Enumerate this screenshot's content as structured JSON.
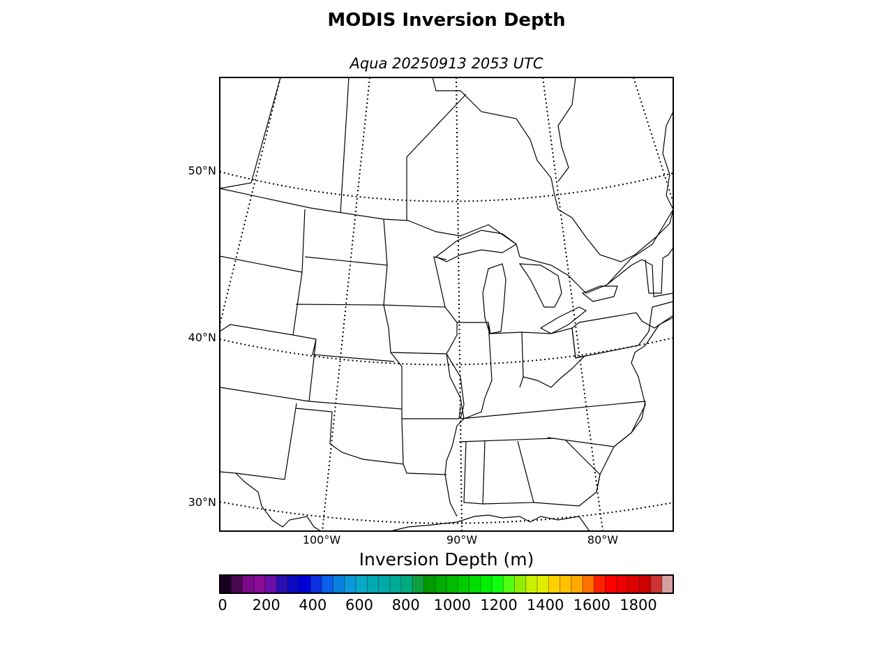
{
  "title": "MODIS Inversion Depth",
  "subtitle": "Aqua 20250913 2053 UTC",
  "map": {
    "lat_labels": [
      {
        "value": 50,
        "text": "50°N"
      },
      {
        "value": 40,
        "text": "40°N"
      },
      {
        "value": 30,
        "text": "30°N"
      }
    ],
    "lon_labels": [
      {
        "value": -100,
        "text": "100°W"
      },
      {
        "value": -90,
        "text": "90°W"
      },
      {
        "value": -80,
        "text": "80°W"
      }
    ]
  },
  "colorbar": {
    "title": "Inversion Depth (m)",
    "min": 0,
    "max": 1950,
    "step": 50,
    "ticks": [
      {
        "value": 0,
        "text": "0"
      },
      {
        "value": 200,
        "text": "200"
      },
      {
        "value": 400,
        "text": "400"
      },
      {
        "value": 600,
        "text": "600"
      },
      {
        "value": 800,
        "text": "800"
      },
      {
        "value": 1000,
        "text": "1000"
      },
      {
        "value": 1200,
        "text": "1200"
      },
      {
        "value": 1400,
        "text": "1400"
      },
      {
        "value": 1600,
        "text": "1600"
      },
      {
        "value": 1800,
        "text": "1800"
      }
    ],
    "colors": [
      "#1a0020",
      "#4a0850",
      "#7a0a88",
      "#8a0a98",
      "#6a10a8",
      "#2a10b0",
      "#0a08c0",
      "#0000d8",
      "#0a30e0",
      "#0a60e8",
      "#0a80e0",
      "#0a98d8",
      "#0aa8c8",
      "#00aab0",
      "#00aaa8",
      "#00aa98",
      "#00aa80",
      "#10a040",
      "#009a00",
      "#00aa00",
      "#00bb00",
      "#00cc00",
      "#00dd00",
      "#00ee00",
      "#10ff10",
      "#50ff10",
      "#90ee00",
      "#c8f000",
      "#e0ee00",
      "#ffd000",
      "#ffc000",
      "#ffa800",
      "#ff7000",
      "#ff2000",
      "#ff0000",
      "#ee0000",
      "#dd0000",
      "#cc0000",
      "#cc3333",
      "#d4a0a0"
    ]
  }
}
